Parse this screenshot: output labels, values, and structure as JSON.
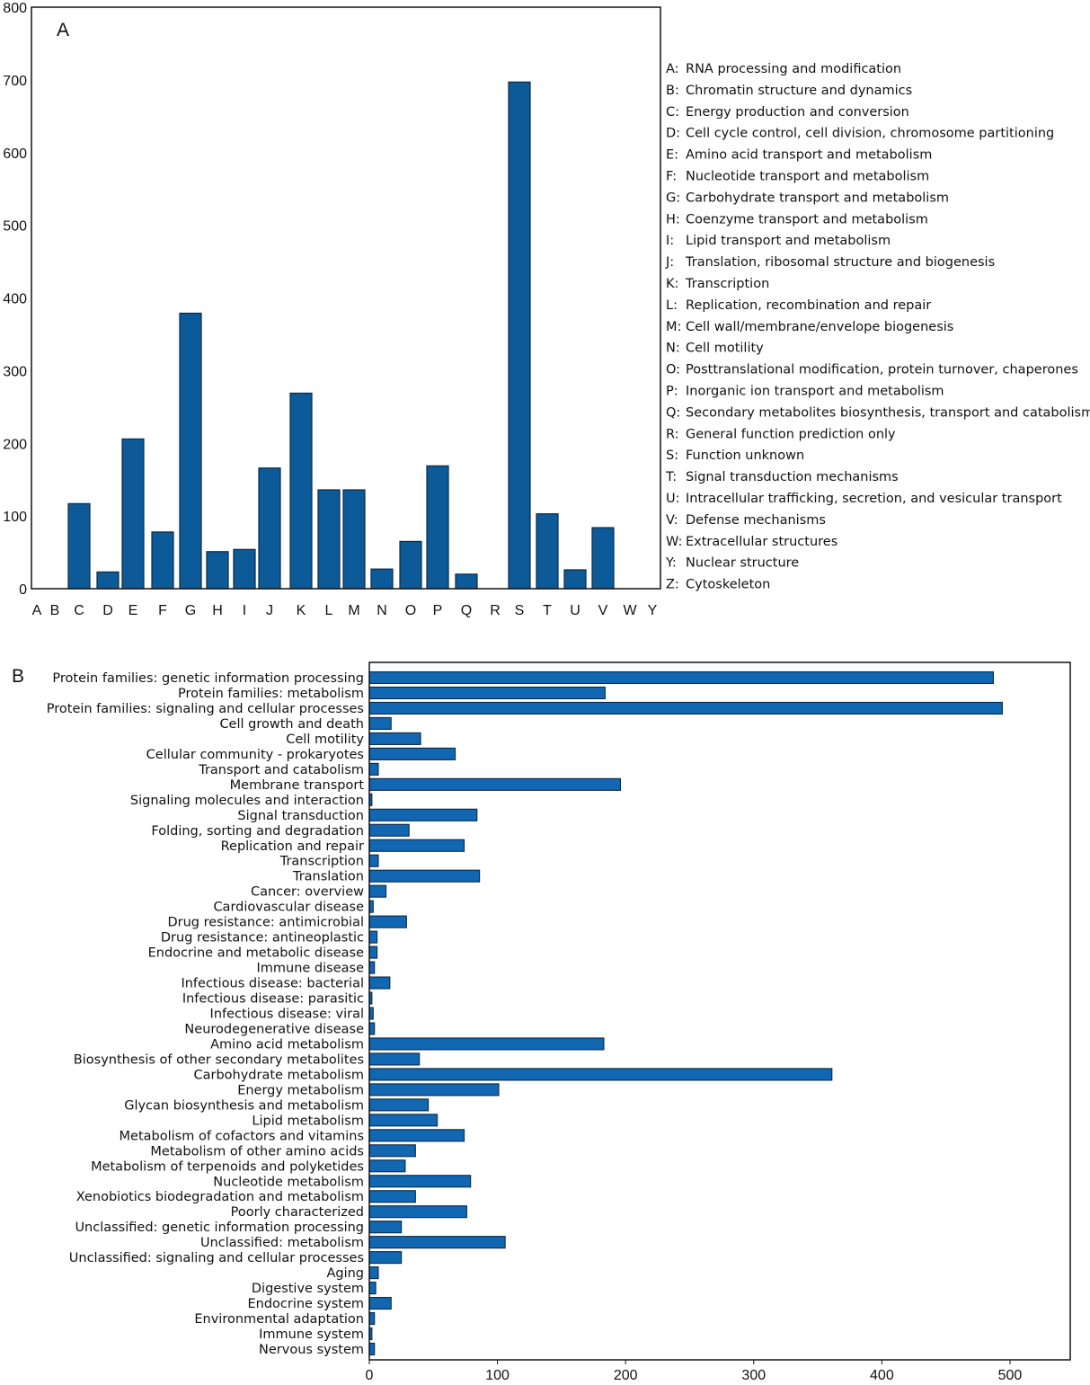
{
  "chart_data": [
    {
      "type": "bar",
      "panel_label": "A",
      "orientation": "vertical",
      "categories": [
        "A",
        "B",
        "C",
        "D",
        "E",
        "F",
        "G",
        "H",
        "I",
        "J",
        "K",
        "L",
        "M",
        "N",
        "O",
        "P",
        "Q",
        "R",
        "S",
        "T",
        "U",
        "V",
        "W",
        "Y"
      ],
      "values": [
        0,
        0,
        117,
        23,
        206,
        78,
        379,
        51,
        54,
        166,
        269,
        136,
        136,
        27,
        65,
        169,
        20,
        0,
        697,
        103,
        26,
        84,
        0,
        0
      ],
      "ylim": [
        0,
        800
      ],
      "yticks": [
        0,
        100,
        200,
        300,
        400,
        500,
        600,
        700,
        800
      ],
      "grid": false,
      "bar_color": "#0d5a98",
      "legend_placement": "right",
      "legend": [
        {
          "code": "A:",
          "label": "RNA processing and modification"
        },
        {
          "code": "B:",
          "label": "Chromatin structure and dynamics"
        },
        {
          "code": "C:",
          "label": "Energy production and conversion"
        },
        {
          "code": "D:",
          "label": "Cell cycle control, cell division, chromosome partitioning"
        },
        {
          "code": "E:",
          "label": "Amino acid transport and metabolism"
        },
        {
          "code": "F:",
          "label": "Nucleotide transport and metabolism"
        },
        {
          "code": "G:",
          "label": "Carbohydrate transport and metabolism"
        },
        {
          "code": "H:",
          "label": "Coenzyme transport and metabolism"
        },
        {
          "code": "I:",
          "label": "Lipid transport and metabolism"
        },
        {
          "code": "J:",
          "label": "Translation, ribosomal structure and biogenesis"
        },
        {
          "code": "K:",
          "label": "Transcription"
        },
        {
          "code": "L:",
          "label": "Replication, recombination and repair"
        },
        {
          "code": "M:",
          "label": "Cell wall/membrane/envelope biogenesis"
        },
        {
          "code": "N:",
          "label": "Cell motility"
        },
        {
          "code": "O:",
          "label": "Posttranslational modification, protein turnover, chaperones"
        },
        {
          "code": "P:",
          "label": "Inorganic ion transport and metabolism"
        },
        {
          "code": "Q:",
          "label": "Secondary metabolites biosynthesis, transport and catabolism"
        },
        {
          "code": "R:",
          "label": "General function prediction only"
        },
        {
          "code": "S:",
          "label": "Function unknown"
        },
        {
          "code": "T:",
          "label": "Signal transduction mechanisms"
        },
        {
          "code": "U:",
          "label": "Intracellular trafficking, secretion, and vesicular transport"
        },
        {
          "code": "V:",
          "label": "Defense mechanisms"
        },
        {
          "code": "W:",
          "label": "Extracellular structures"
        },
        {
          "code": "Y:",
          "label": "Nuclear structure"
        },
        {
          "code": "Z:",
          "label": "Cytoskeleton"
        }
      ]
    },
    {
      "type": "bar",
      "panel_label": "B",
      "orientation": "horizontal",
      "categories": [
        "Protein families: genetic information processing",
        "Protein families: metabolism",
        "Protein families: signaling and cellular processes",
        "Cell growth and death",
        "Cell motility",
        "Cellular community - prokaryotes",
        "Transport and catabolism",
        "Membrane transport",
        "Signaling molecules and interaction",
        "Signal transduction",
        "Folding, sorting and degradation",
        "Replication and repair",
        "Transcription",
        "Translation",
        "Cancer: overview",
        "Cardiovascular disease",
        "Drug resistance: antimicrobial",
        "Drug resistance: antineoplastic",
        "Endocrine and metabolic disease",
        "Immune disease",
        "Infectious disease: bacterial",
        "Infectious disease: parasitic",
        "Infectious disease: viral",
        "Neurodegenerative disease",
        "Amino acid metabolism",
        "Biosynthesis of other secondary metabolites",
        "Carbohydrate metabolism",
        "Energy metabolism",
        "Glycan biosynthesis and metabolism",
        "Lipid metabolism",
        "Metabolism of cofactors and vitamins",
        "Metabolism of other amino acids",
        "Metabolism of terpenoids and polyketides",
        "Nucleotide metabolism",
        "Xenobiotics biodegradation and metabolism",
        "Poorly characterized",
        "Unclassified: genetic information processing",
        "Unclassified: metabolism",
        "Unclassified: signaling and cellular processes",
        "Aging",
        "Digestive system",
        "Endocrine system",
        "Environmental adaptation",
        "Immune system",
        "Nervous system"
      ],
      "values": [
        487,
        184,
        494,
        17,
        40,
        67,
        7,
        196,
        2,
        84,
        31,
        74,
        7,
        86,
        13,
        3,
        29,
        6,
        6,
        4,
        16,
        2,
        3,
        4,
        183,
        39,
        361,
        101,
        46,
        53,
        74,
        36,
        28,
        79,
        36,
        76,
        25,
        106,
        25,
        7,
        5,
        17,
        4,
        2,
        4
      ],
      "xlim": [
        0,
        547
      ],
      "xticks": [
        0,
        100,
        200,
        300,
        400,
        500
      ],
      "grid": false,
      "bar_color": "#1167b1"
    }
  ]
}
